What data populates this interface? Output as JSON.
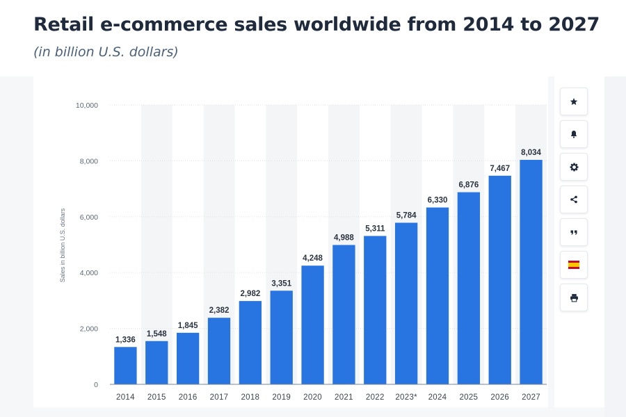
{
  "header": {
    "title": "Retail e-commerce sales worldwide from 2014 to 2027",
    "subtitle": "(in billion U.S. dollars)"
  },
  "chart_data": {
    "type": "bar",
    "categories": [
      "2014",
      "2015",
      "2016",
      "2017",
      "2018",
      "2019",
      "2020",
      "2021",
      "2022",
      "2023*",
      "2024",
      "2025",
      "2026",
      "2027"
    ],
    "values": [
      1336,
      1548,
      1845,
      2382,
      2982,
      3351,
      4248,
      4988,
      5311,
      5784,
      6330,
      6876,
      7467,
      8034
    ],
    "value_labels": [
      "1,336",
      "1,548",
      "1,845",
      "2,382",
      "2,982",
      "3,351",
      "4,248",
      "4,988",
      "5,311",
      "5,784",
      "6,330",
      "6,876",
      "7,467",
      "8,034"
    ],
    "ylabel": "Sales in billion U.S. dollars",
    "ylim": [
      0,
      10000
    ],
    "yticks": [
      0,
      2000,
      4000,
      6000,
      8000,
      10000
    ],
    "ytick_labels": [
      "0",
      "2,000",
      "4,000",
      "6,000",
      "8,000",
      "10,000"
    ],
    "bar_color": "#2874e0",
    "band_color": "#f4f5f7",
    "grid": true
  },
  "toolbar": {
    "buttons": [
      {
        "name": "favorite-button",
        "icon": "star-icon"
      },
      {
        "name": "notification-button",
        "icon": "bell-icon"
      },
      {
        "name": "settings-button",
        "icon": "gear-icon"
      },
      {
        "name": "share-button",
        "icon": "share-icon"
      },
      {
        "name": "cite-button",
        "icon": "quote-icon"
      },
      {
        "name": "language-button",
        "icon": "spain-flag-icon"
      },
      {
        "name": "print-button",
        "icon": "printer-icon"
      }
    ]
  }
}
